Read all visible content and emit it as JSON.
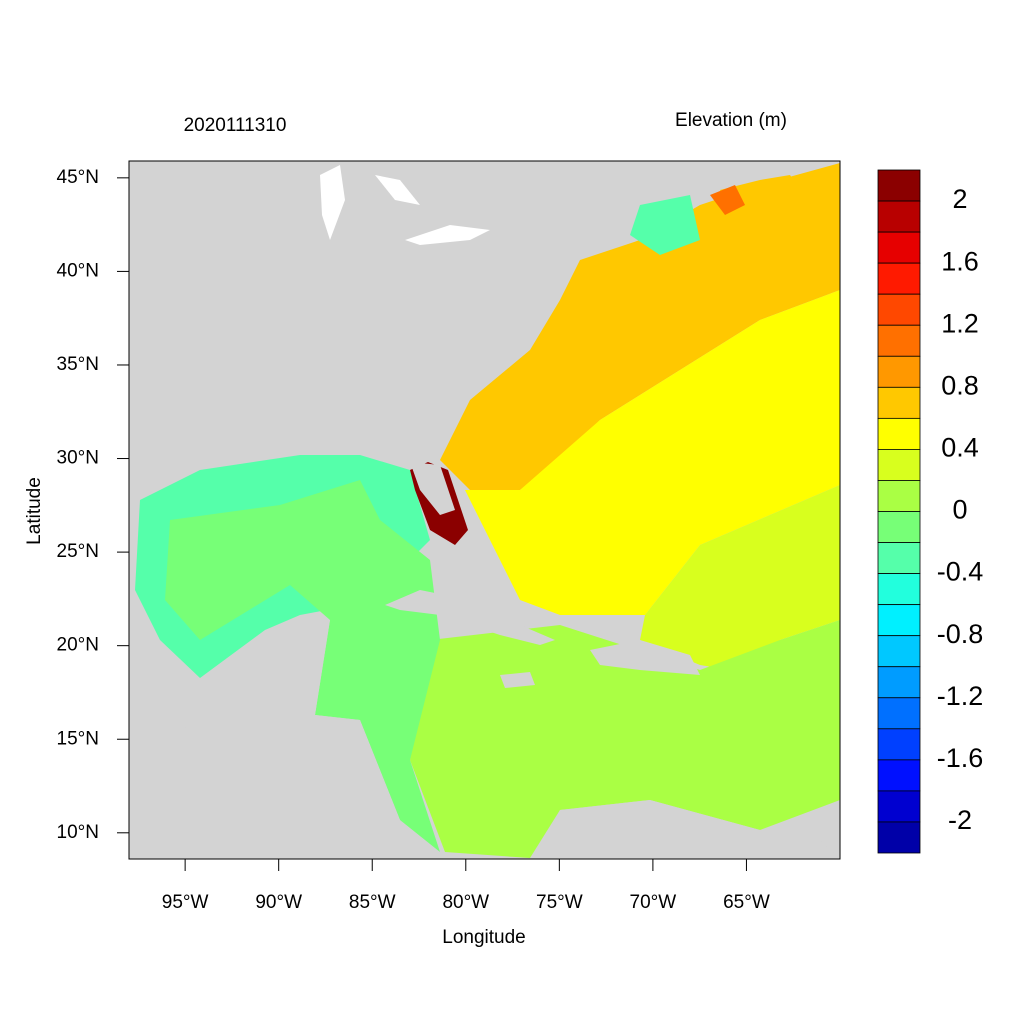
{
  "title": "2020111310",
  "variable_label": "Elevation (m)",
  "x_label": "Longitude",
  "y_label": "Latitude",
  "xlim": [
    -98,
    -60
  ],
  "ylim": [
    8.6,
    45.9
  ],
  "xticks": [
    {
      "value": -95,
      "label": "95°W"
    },
    {
      "value": -90,
      "label": "90°W"
    },
    {
      "value": -85,
      "label": "85°W"
    },
    {
      "value": -80,
      "label": "80°W"
    },
    {
      "value": -75,
      "label": "75°W"
    },
    {
      "value": -70,
      "label": "70°W"
    },
    {
      "value": -65,
      "label": "65°W"
    }
  ],
  "yticks": [
    {
      "value": 10,
      "label": "10°N"
    },
    {
      "value": 15,
      "label": "15°N"
    },
    {
      "value": 20,
      "label": "20°N"
    },
    {
      "value": 25,
      "label": "25°N"
    },
    {
      "value": 30,
      "label": "30°N"
    },
    {
      "value": 35,
      "label": "35°N"
    },
    {
      "value": 40,
      "label": "40°N"
    },
    {
      "value": 45,
      "label": "45°N"
    }
  ],
  "colorbar": {
    "lim": [
      -2.2,
      2.2
    ],
    "colors": [
      "#8b0000",
      "#b80000",
      "#e60000",
      "#ff1a00",
      "#ff4800",
      "#ff7000",
      "#ff9800",
      "#ffc800",
      "#ffff00",
      "#d8ff1e",
      "#aaff44",
      "#77ff77",
      "#55ffaa",
      "#22ffdd",
      "#00f0ff",
      "#00c8ff",
      "#009cff",
      "#0070ff",
      "#0040ff",
      "#0010ff",
      "#0000d0",
      "#0000a8"
    ],
    "ticks": [
      2,
      1.6,
      1.2,
      0.8,
      0.4,
      0,
      -0.4,
      -0.8,
      -1.2,
      -1.6,
      -2
    ]
  }
}
